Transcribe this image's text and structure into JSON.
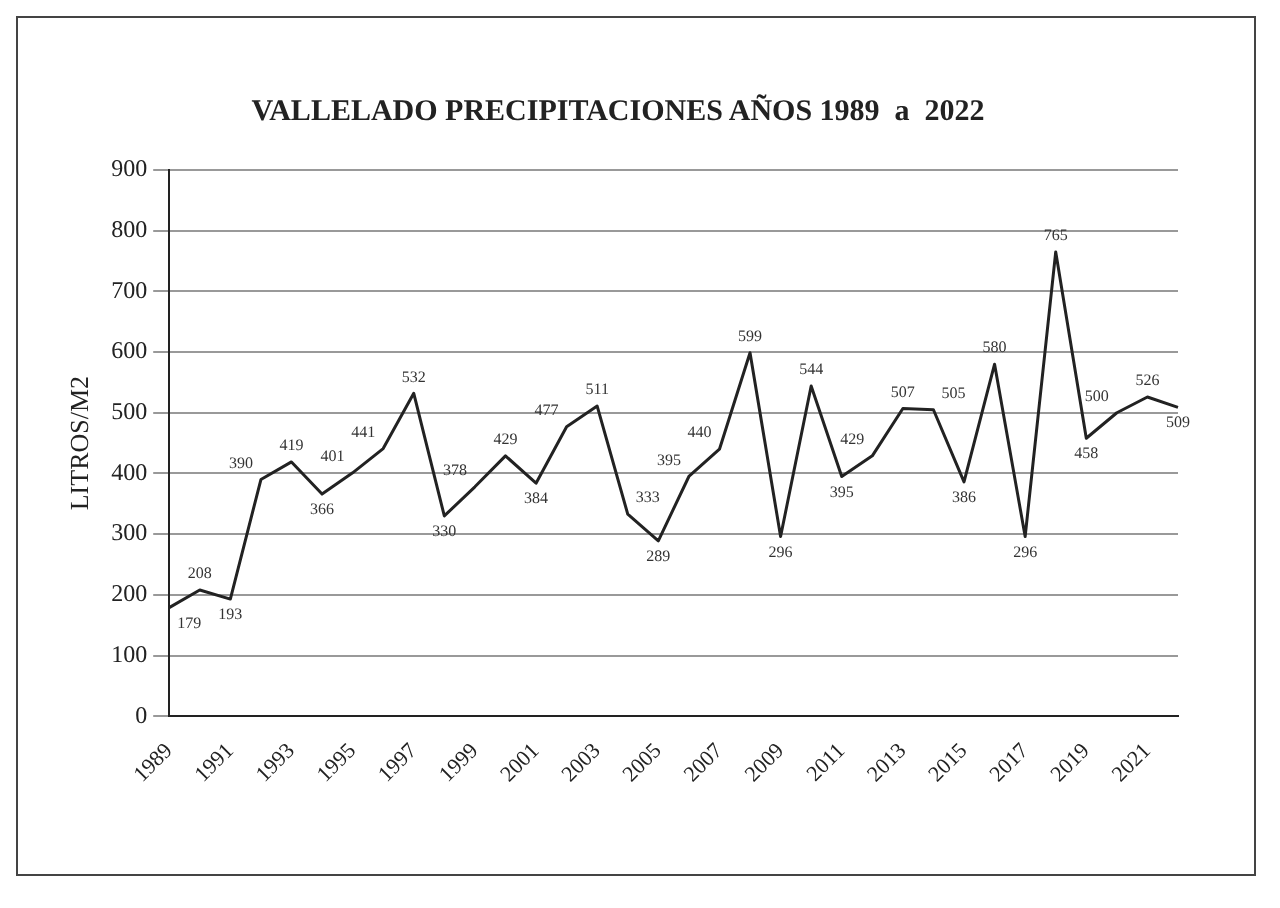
{
  "chart_data": {
    "type": "line",
    "title": "VALLELADO PRECIPITACIONES AÑOS 1989  a  2022",
    "ylabel": "LITROS/M2",
    "categories": [
      "1989",
      null,
      "1991",
      null,
      "1993",
      null,
      "1995",
      null,
      "1997",
      null,
      "1999",
      null,
      "2001",
      null,
      "2003",
      null,
      "2005",
      null,
      "2007",
      null,
      "2009",
      null,
      "2011",
      null,
      "2013",
      null,
      "2015",
      null,
      "2017",
      null,
      "2019",
      null,
      "2021",
      null
    ],
    "series": [
      {
        "color": "#222222",
        "values": [
          179,
          208,
          193,
          390,
          419,
          366,
          401,
          441,
          532,
          330,
          378,
          429,
          384,
          477,
          511,
          333,
          289,
          395,
          440,
          599,
          296,
          544,
          395,
          429,
          507,
          505,
          386,
          580,
          296,
          765,
          458,
          500,
          526,
          509
        ]
      }
    ],
    "ylim": [
      0,
      900
    ],
    "yticks": [
      0,
      100,
      200,
      300,
      400,
      500,
      600,
      700,
      800,
      900
    ],
    "grid": "y",
    "legend": false,
    "marker": "none",
    "line_style": "solid",
    "data_labels": true
  }
}
